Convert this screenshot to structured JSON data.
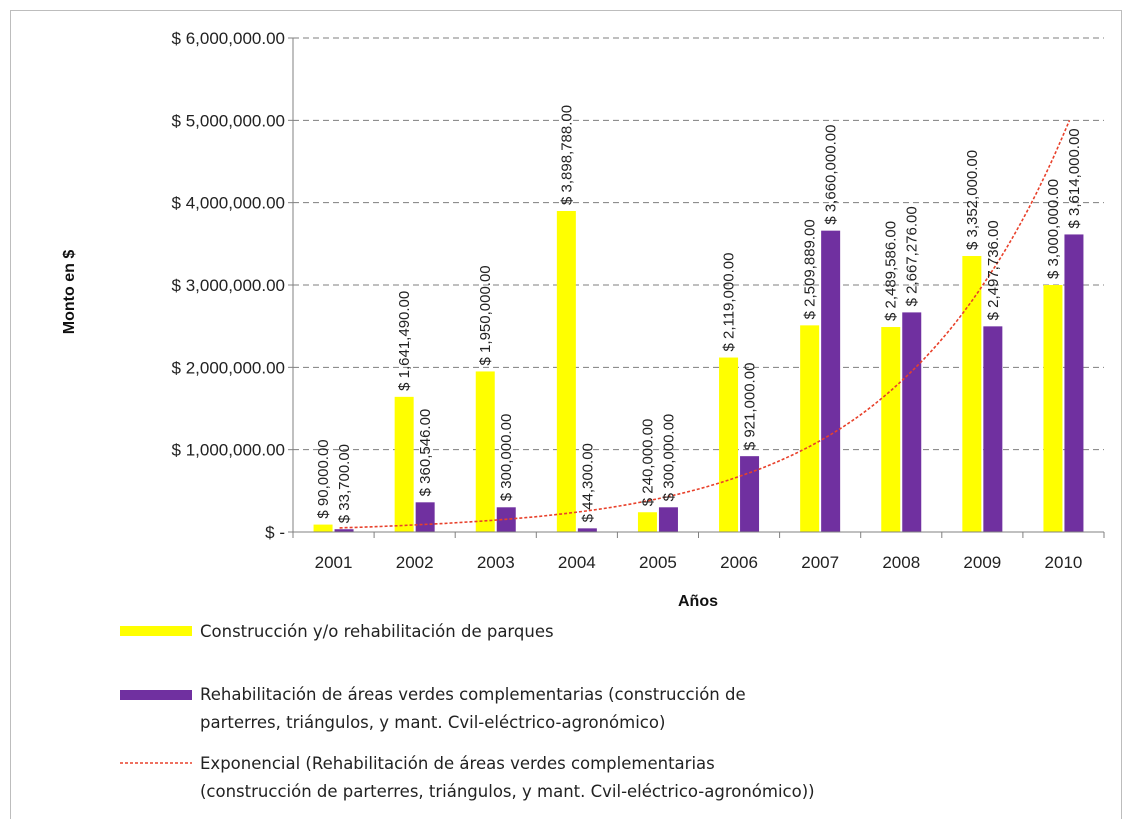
{
  "chart_data": {
    "type": "bar",
    "categories": [
      "2001",
      "2002",
      "2003",
      "2004",
      "2005",
      "2006",
      "2007",
      "2008",
      "2009",
      "2010"
    ],
    "series": [
      {
        "name": "Construcción y/o rehabilitación de parques",
        "color": "#ffff00",
        "values": [
          90000,
          1641490,
          1950000,
          3898788,
          240000,
          2119000,
          2509889,
          2489586,
          3352000,
          3000000
        ],
        "labels": [
          "$ 90,000.00",
          "$ 1,641,490.00",
          "$ 1,950,000.00",
          "$ 3,898,788.00",
          "$ 240,000.00",
          "$ 2,119,000.00",
          "$ 2,509,889.00",
          "$ 2,489,586.00",
          "$ 3,352,000.00",
          "$ 3,000,000.00"
        ]
      },
      {
        "name": "Rehabilitación de áreas verdes complementarias (construcción de parterres, triángulos, y mant. Cvil-eléctrico-agronómico)",
        "color": "#7030a0",
        "values": [
          33700,
          360546,
          300000,
          44300,
          300000,
          921000,
          3660000,
          2667276,
          2497736,
          3614000
        ],
        "labels": [
          "$ 33,700.00",
          "$ 360,546.00",
          "$ 300,000.00",
          "$ 44,300.00",
          "$ 300,000.00",
          "$ 921,000.00",
          "$ 3,660,000.00",
          "$ 2,667,276.00",
          "$ 2,497,736.00",
          "$ 3,614,000.00"
        ]
      }
    ],
    "trendline": {
      "name": "Exponencial (Rehabilitación de áreas verdes complementarias (construcción de parterres, triángulos, y mant. Cvil-eléctrico-agronómico))",
      "type": "exponential",
      "color": "#e8412b",
      "values": [
        50000,
        90000,
        150000,
        250000,
        420000,
        700000,
        1150000,
        1900000,
        3100000,
        5000000
      ]
    },
    "xlabel": "Años",
    "ylabel": "Monto en $",
    "ylim": [
      0,
      6000000
    ],
    "yticks": [
      0,
      1000000,
      2000000,
      3000000,
      4000000,
      5000000,
      6000000
    ],
    "ytick_labels": [
      "$ -",
      "$ 1,000,000.00",
      "$ 2,000,000.00",
      "$ 3,000,000.00",
      "$ 4,000,000.00",
      "$ 5,000,000.00",
      "$ 6,000,000.00"
    ],
    "grid": true,
    "legend": {
      "placement": "bottom",
      "entries": [
        {
          "key": "yellow",
          "lines": [
            "Construcción y/o rehabilitación de parques"
          ]
        },
        {
          "key": "purple",
          "lines": [
            "Rehabilitación de áreas verdes complementarias (construcción de",
            "parterres, triángulos, y mant. Cvil-eléctrico-agronómico)"
          ]
        },
        {
          "key": "trend",
          "lines": [
            "Exponencial (Rehabilitación de áreas verdes complementarias",
            "(construcción de parterres, triángulos, y mant. Cvil-eléctrico-agronómico))"
          ]
        }
      ]
    }
  }
}
